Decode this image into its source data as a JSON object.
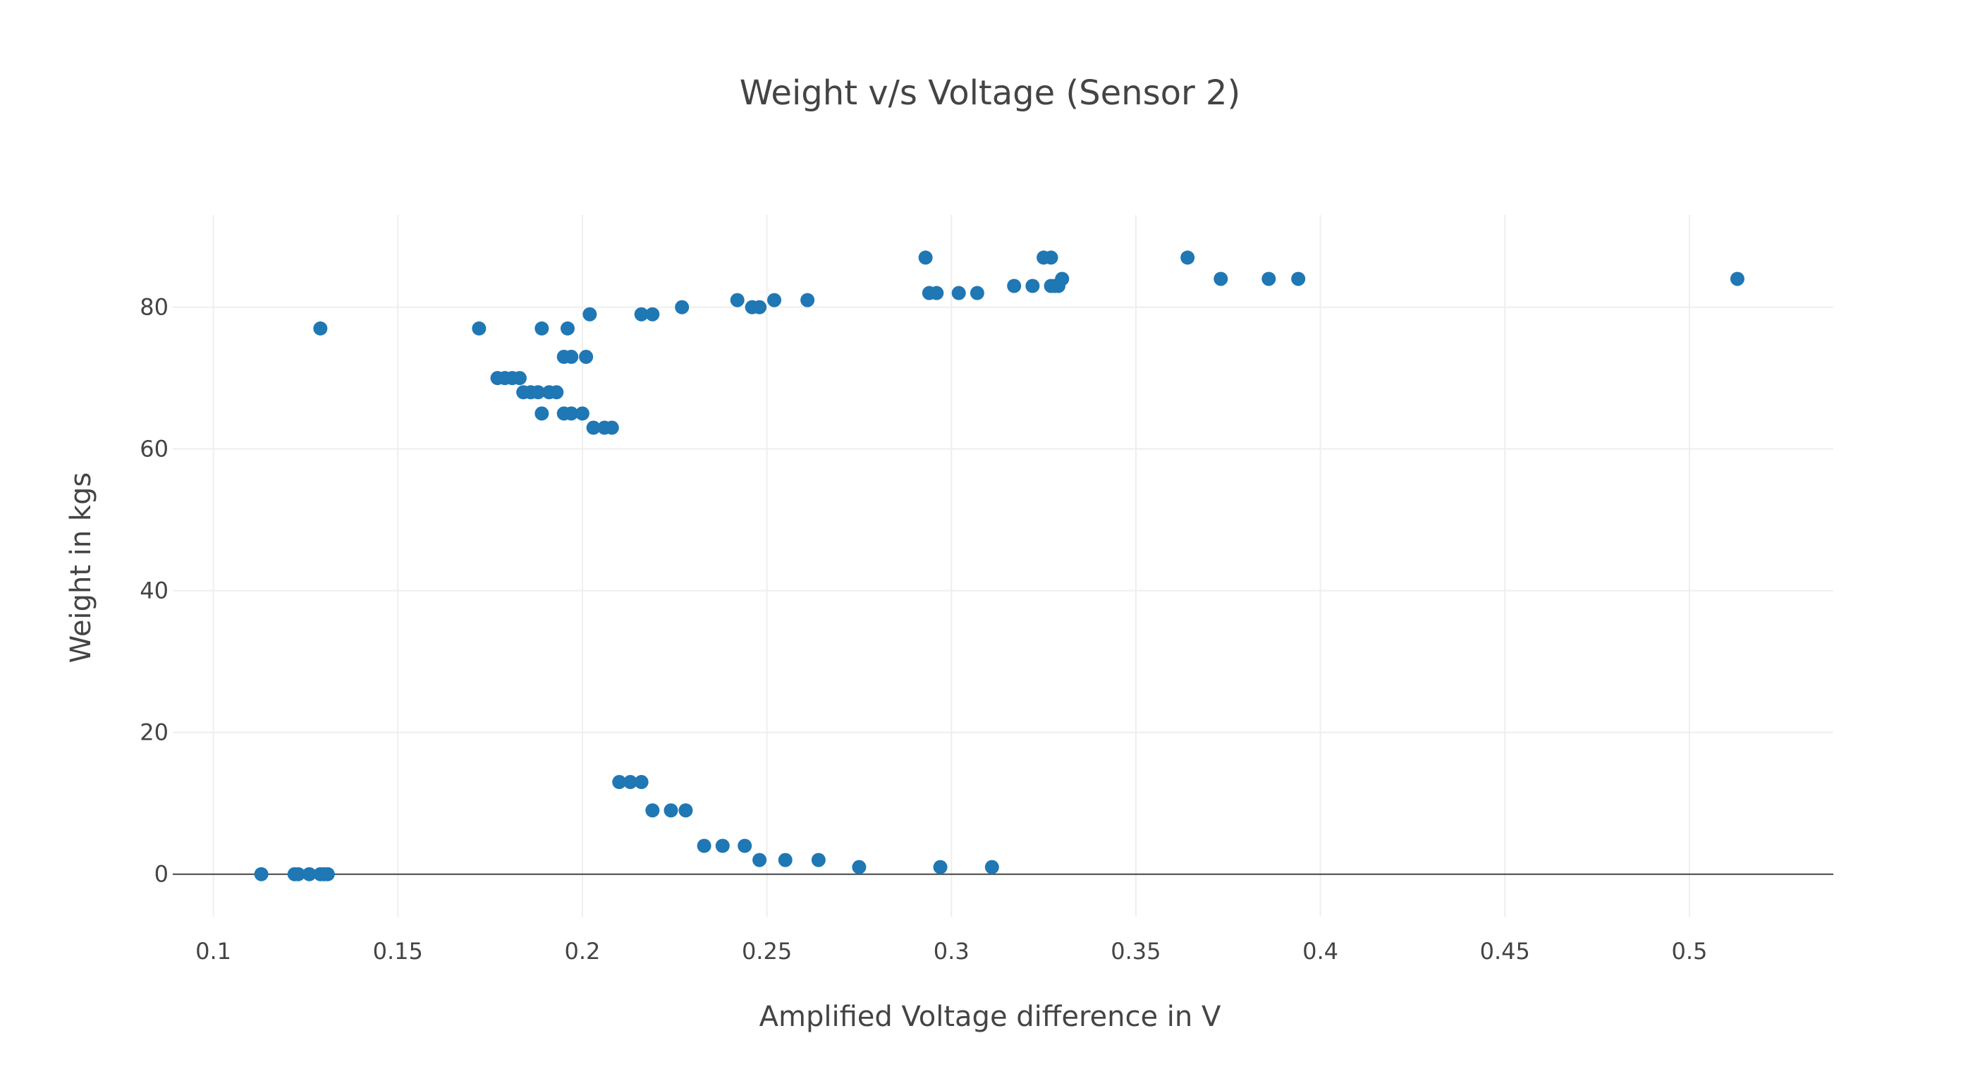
{
  "chart_data": {
    "type": "scatter",
    "title": "Weight v/s Voltage (Sensor 2)",
    "xlabel": "Amplified Voltage difference in V",
    "ylabel": "Weight in kgs",
    "xlim": [
      0.089,
      0.539
    ],
    "ylim": [
      -6,
      93
    ],
    "x_ticks": [
      0.1,
      0.15,
      0.2,
      0.25,
      0.3,
      0.35,
      0.4,
      0.45,
      0.5
    ],
    "x_tick_labels": [
      "0.1",
      "0.15",
      "0.2",
      "0.25",
      "0.3",
      "0.35",
      "0.4",
      "0.45",
      "0.5"
    ],
    "y_ticks": [
      0,
      20,
      40,
      60,
      80
    ],
    "y_tick_labels": [
      "0",
      "20",
      "40",
      "60",
      "80"
    ],
    "grid": true,
    "zero_line": true,
    "marker_color": "#1f77b4",
    "series": [
      {
        "x": [
          0.129,
          0.172,
          0.189,
          0.196,
          0.202,
          0.216,
          0.219,
          0.227,
          0.242,
          0.246,
          0.248,
          0.252,
          0.261,
          0.177,
          0.179,
          0.181,
          0.183,
          0.195,
          0.197,
          0.201,
          0.184,
          0.186,
          0.188,
          0.191,
          0.193,
          0.189,
          0.195,
          0.197,
          0.2,
          0.203,
          0.206,
          0.208,
          0.293,
          0.294,
          0.296,
          0.302,
          0.307,
          0.317,
          0.322,
          0.325,
          0.327,
          0.327,
          0.328,
          0.329,
          0.33,
          0.364,
          0.373,
          0.386,
          0.394,
          0.513,
          0.21,
          0.213,
          0.216,
          0.219,
          0.224,
          0.228,
          0.233,
          0.238,
          0.244,
          0.248,
          0.255,
          0.264,
          0.275,
          0.297,
          0.311,
          0.113,
          0.122,
          0.123,
          0.126,
          0.129,
          0.13,
          0.131
        ],
        "y": [
          77,
          77,
          77,
          77,
          79,
          79,
          79,
          80,
          81,
          80,
          80,
          81,
          81,
          70,
          70,
          70,
          70,
          73,
          73,
          73,
          68,
          68,
          68,
          68,
          68,
          65,
          65,
          65,
          65,
          63,
          63,
          63,
          87,
          82,
          82,
          82,
          82,
          83,
          83,
          87,
          87,
          83,
          83,
          83,
          84,
          87,
          84,
          84,
          84,
          84,
          13,
          13,
          13,
          9,
          9,
          9,
          4,
          4,
          4,
          2,
          2,
          2,
          1,
          1,
          1,
          0,
          0,
          0,
          0,
          0,
          0,
          0
        ]
      }
    ]
  }
}
